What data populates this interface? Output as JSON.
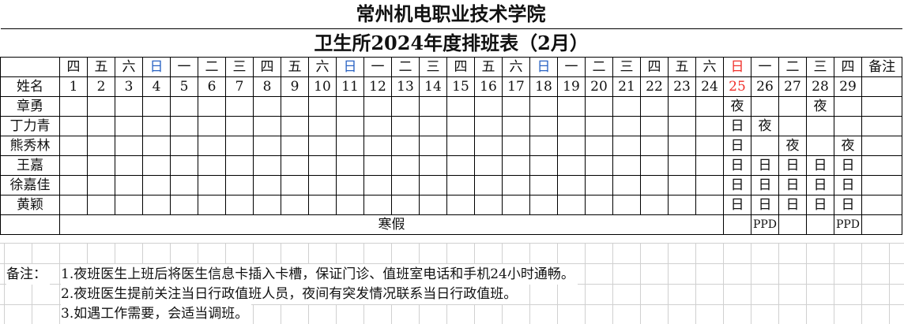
{
  "header": {
    "title": "常州机电职业技术学院",
    "subtitle": "卫生所2024年度排班表（2月）"
  },
  "table": {
    "name_header": "姓名",
    "remark_header": "备注",
    "weekdays": [
      "四",
      "五",
      "六",
      "日",
      "一",
      "二",
      "三",
      "四",
      "五",
      "六",
      "日",
      "一",
      "二",
      "三",
      "四",
      "五",
      "六",
      "日",
      "一",
      "二",
      "三",
      "四",
      "五",
      "六",
      "日",
      "一",
      "二",
      "三",
      "四"
    ],
    "dates": [
      "1",
      "2",
      "3",
      "4",
      "5",
      "6",
      "7",
      "8",
      "9",
      "10",
      "11",
      "12",
      "13",
      "14",
      "15",
      "16",
      "17",
      "18",
      "19",
      "20",
      "21",
      "22",
      "23",
      "24",
      "25",
      "26",
      "27",
      "28",
      "29"
    ],
    "highlight_date": "25",
    "rows": [
      {
        "name": "章勇",
        "shifts": [
          "",
          "",
          "",
          "",
          "",
          "",
          "",
          "",
          "",
          "",
          "",
          "",
          "",
          "",
          "",
          "",
          "",
          "",
          "",
          "",
          "",
          "",
          "",
          "",
          "夜",
          "",
          "",
          "夜",
          ""
        ]
      },
      {
        "name": "丁力青",
        "shifts": [
          "",
          "",
          "",
          "",
          "",
          "",
          "",
          "",
          "",
          "",
          "",
          "",
          "",
          "",
          "",
          "",
          "",
          "",
          "",
          "",
          "",
          "",
          "",
          "",
          "日",
          "夜",
          "",
          "",
          ""
        ]
      },
      {
        "name": "熊秀林",
        "shifts": [
          "",
          "",
          "",
          "",
          "",
          "",
          "",
          "",
          "",
          "",
          "",
          "",
          "",
          "",
          "",
          "",
          "",
          "",
          "",
          "",
          "",
          "",
          "",
          "",
          "日",
          "",
          "夜",
          "",
          "夜"
        ]
      },
      {
        "name": "王嘉",
        "shifts": [
          "",
          "",
          "",
          "",
          "",
          "",
          "",
          "",
          "",
          "",
          "",
          "",
          "",
          "",
          "",
          "",
          "",
          "",
          "",
          "",
          "",
          "",
          "",
          "",
          "日",
          "日",
          "日",
          "日",
          "日"
        ]
      },
      {
        "name": "徐嘉佳",
        "shifts": [
          "",
          "",
          "",
          "",
          "",
          "",
          "",
          "",
          "",
          "",
          "",
          "",
          "",
          "",
          "",
          "",
          "",
          "",
          "",
          "",
          "",
          "",
          "",
          "",
          "日",
          "日",
          "日",
          "日",
          "日"
        ]
      },
      {
        "name": "黄颖",
        "shifts": [
          "",
          "",
          "",
          "",
          "",
          "",
          "",
          "",
          "",
          "",
          "",
          "",
          "",
          "",
          "",
          "",
          "",
          "",
          "",
          "",
          "",
          "",
          "",
          "",
          "日",
          "日",
          "日",
          "日",
          "日"
        ]
      }
    ],
    "holiday_label": "寒假",
    "last_row_tail": [
      "",
      "PPD",
      "",
      "",
      "PPD"
    ]
  },
  "notes": {
    "label": "备注：",
    "items": [
      "1.夜班医生上班后将医生信息卡插入卡槽，保证门诊、值班室电话和手机24小时通畅。",
      "2.夜班医生提前关注当日行政值班人员，夜间有突发情况联系当日行政值班。",
      "3.如遇工作需要，会适当调班。"
    ]
  },
  "colors": {
    "sunday": "#2a63c4",
    "highlight": "#f0302a"
  }
}
